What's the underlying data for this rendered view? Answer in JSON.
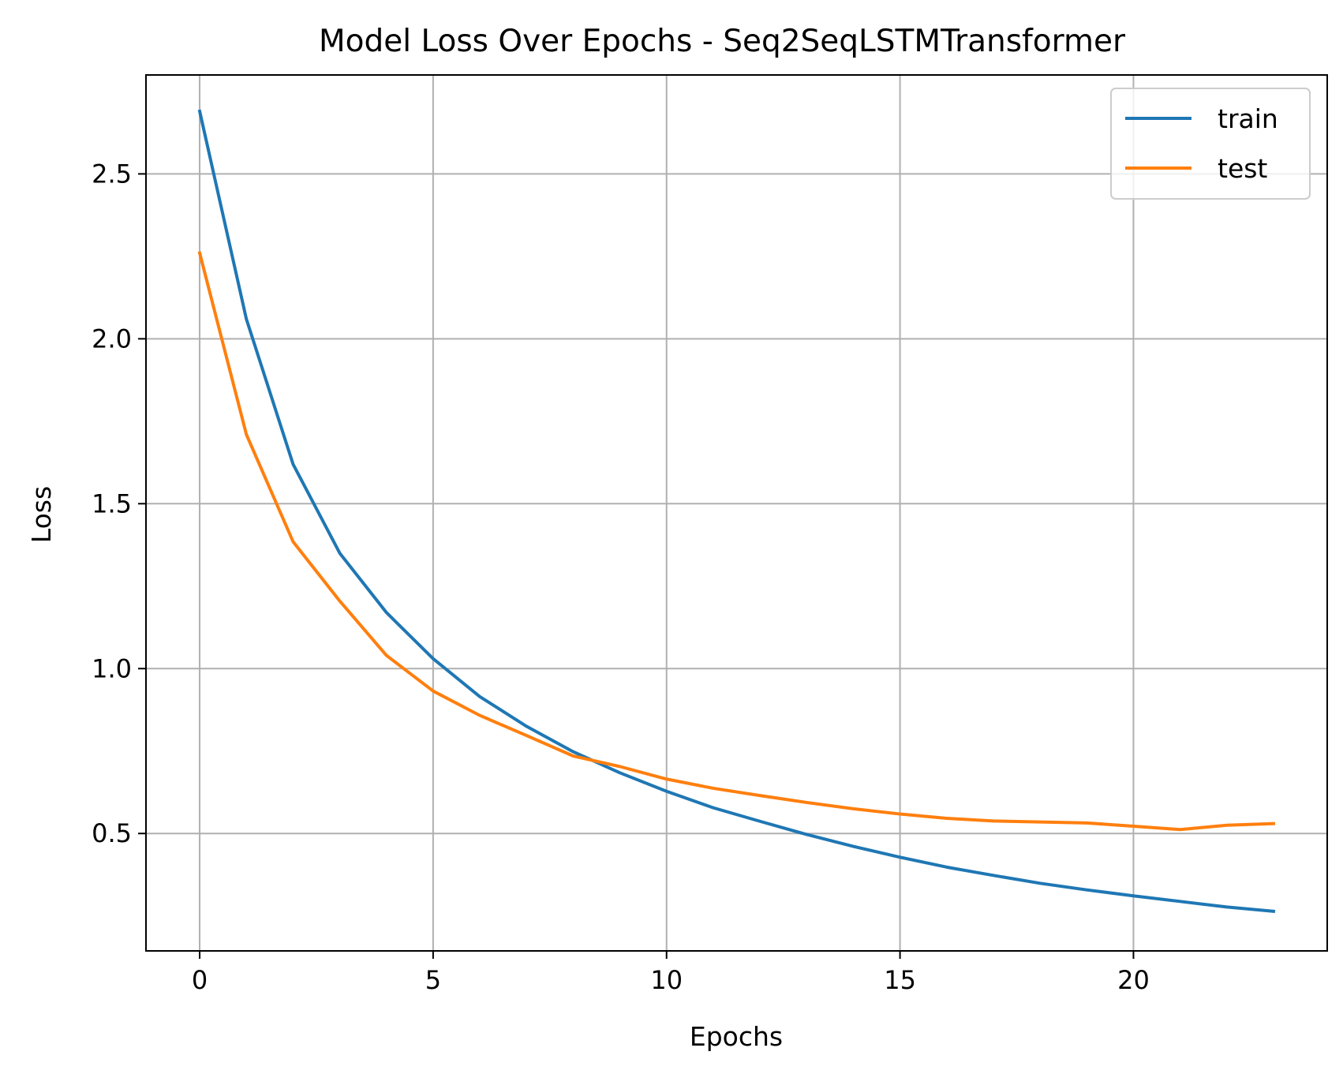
{
  "chart_data": {
    "type": "line",
    "title": "Model Loss Over Epochs - Seq2SeqLSTMTransformer",
    "xlabel": "Epochs",
    "ylabel": "Loss",
    "xlim": [
      -1.15,
      24.15
    ],
    "ylim": [
      0.144,
      2.8
    ],
    "xticks": [
      0,
      5,
      10,
      15,
      20
    ],
    "yticks": [
      0.5,
      1.0,
      1.5,
      2.0,
      2.5
    ],
    "x": [
      0,
      1,
      2,
      3,
      4,
      5,
      6,
      7,
      8,
      9,
      10,
      11,
      12,
      13,
      14,
      15,
      16,
      17,
      18,
      19,
      20,
      21,
      22,
      23
    ],
    "grid": true,
    "legend_position": "upper right",
    "series": [
      {
        "name": "train",
        "color": "#1f77b4",
        "values": [
          2.69,
          2.06,
          1.62,
          1.35,
          1.17,
          1.03,
          0.915,
          0.825,
          0.748,
          0.684,
          0.628,
          0.578,
          0.537,
          0.497,
          0.461,
          0.428,
          0.398,
          0.373,
          0.349,
          0.329,
          0.311,
          0.294,
          0.277,
          0.264
        ]
      },
      {
        "name": "test",
        "color": "#ff7f0e",
        "values": [
          2.26,
          1.71,
          1.385,
          1.205,
          1.04,
          0.932,
          0.858,
          0.797,
          0.735,
          0.703,
          0.665,
          0.637,
          0.615,
          0.594,
          0.575,
          0.559,
          0.546,
          0.538,
          0.535,
          0.532,
          0.522,
          0.512,
          0.525,
          0.53
        ]
      }
    ]
  }
}
